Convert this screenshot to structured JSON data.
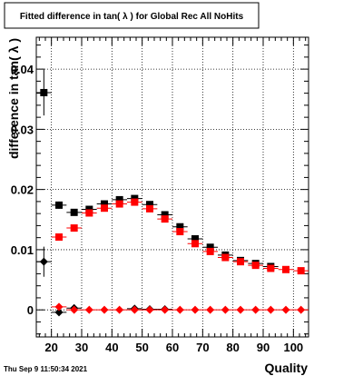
{
  "title": "Fitted difference in tan( λ ) for Global Rec All NoHits",
  "timestamp": "Thu Sep  9 11:50:34 2021",
  "chart_data": {
    "type": "scatter",
    "title": "Fitted difference in tan( λ ) for Global Rec All NoHits",
    "xlabel": "Quality",
    "ylabel": "difference in tan( λ )",
    "xlim": [
      15,
      105
    ],
    "ylim": [
      -0.0045,
      0.0453
    ],
    "x_ticks": [
      20,
      30,
      40,
      50,
      60,
      70,
      80,
      90,
      100
    ],
    "y_ticks": [
      0,
      0.01,
      0.02,
      0.03,
      0.04
    ],
    "y_tick_labels": [
      "0",
      "0.01",
      "0.02",
      "0.03",
      "0.04"
    ],
    "grid": true,
    "series": [
      {
        "color": "#000000",
        "marker": "square",
        "x": [
          17.5,
          22.5,
          27.5,
          32.5,
          37.5,
          42.5,
          47.5,
          52.5,
          57.5,
          62.5,
          67.5,
          72.5,
          77.5,
          82.5,
          87.5,
          92.5
        ],
        "y": [
          0.0361,
          0.0174,
          0.0162,
          0.0167,
          0.0176,
          0.0183,
          0.0185,
          0.0175,
          0.0158,
          0.0138,
          0.0118,
          0.0104,
          0.0091,
          0.0082,
          0.0077,
          0.0072
        ],
        "yerr": [
          0.0038,
          0.0006,
          0.0004,
          0.0004,
          0.0004,
          0.0004,
          0.0004,
          0.0004,
          0.0004,
          0.0004,
          0.0004,
          0.0004,
          0.0004,
          0.0004,
          0.0004,
          0.0004
        ]
      },
      {
        "color": "#ff0000",
        "marker": "square",
        "x": [
          22.5,
          27.5,
          32.5,
          37.5,
          42.5,
          47.5,
          52.5,
          57.5,
          62.5,
          67.5,
          72.5,
          77.5,
          82.5,
          87.5,
          92.5,
          97.5,
          102.5
        ],
        "y": [
          0.0121,
          0.0136,
          0.0161,
          0.0169,
          0.0176,
          0.0179,
          0.0168,
          0.0151,
          0.013,
          0.011,
          0.0097,
          0.0087,
          0.008,
          0.0074,
          0.0069,
          0.0067,
          0.0065
        ],
        "yerr": [
          0.0006,
          0.0004,
          0.0004,
          0.0004,
          0.0004,
          0.0004,
          0.0004,
          0.0004,
          0.0004,
          0.0004,
          0.0004,
          0.0004,
          0.0004,
          0.0004,
          0.0004,
          0.0004,
          0.0004
        ]
      },
      {
        "color": "#000000",
        "marker": "diamond",
        "x": [
          17.5,
          22.5,
          27.5,
          47.5,
          52.5,
          57.5
        ],
        "y": [
          0.008,
          -0.0004,
          0.0003,
          0.0002,
          0.0001,
          0.0001
        ],
        "yerr": [
          0.0025,
          0.0004,
          0.0002,
          0.0002,
          0.0002,
          0.0002
        ]
      },
      {
        "color": "#ff0000",
        "marker": "diamond",
        "x": [
          22.5,
          27.5,
          32.5,
          37.5,
          42.5,
          47.5,
          52.5,
          57.5,
          62.5,
          67.5,
          72.5,
          77.5,
          82.5,
          87.5,
          92.5,
          97.5,
          102.5
        ],
        "y": [
          0.0005,
          0,
          0,
          0,
          0,
          0,
          0,
          0,
          0,
          0,
          0,
          0,
          0,
          0,
          0,
          0,
          0
        ],
        "yerr": [
          0,
          0,
          0,
          0,
          0,
          0,
          0,
          0,
          0,
          0,
          0,
          0,
          0,
          0,
          0,
          0,
          0
        ]
      }
    ]
  }
}
